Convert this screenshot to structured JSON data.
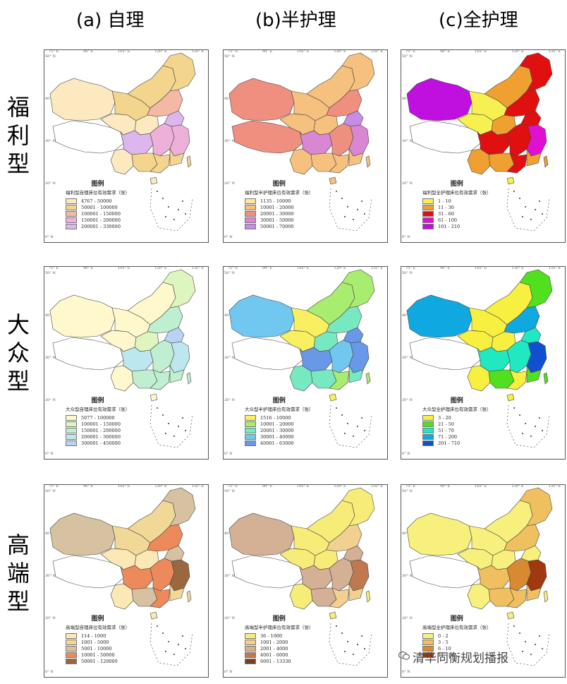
{
  "columns": [
    "(a) 自理",
    "(b)半护理",
    "(c)全护理"
  ],
  "rows": [
    "福利型",
    "大众型",
    "高端型"
  ],
  "legend_heading": "图例",
  "lon_ticks": [
    "75° E",
    "90° E",
    "105° E",
    "120° E",
    "135° E"
  ],
  "lat_ticks": [
    "50° N",
    "40° N",
    "30° N",
    "20° N",
    "0° N"
  ],
  "watermark": "清华同衡规划播报",
  "panels": [
    {
      "id": "welfare-self",
      "legend_title": "福利型自理床位有效需求（张）",
      "classes": [
        "4767 - 50000",
        "50001 - 100000",
        "100001 - 150000",
        "150001 - 200000",
        "200001 - 330000"
      ],
      "colors": [
        "#fce9c0",
        "#f4d58e",
        "#f4b8a4",
        "#eeb0d8",
        "#dcb6ec"
      ],
      "regions": {
        "ne": 1,
        "nm": 1,
        "xj": 0,
        "xz": -1,
        "qh": 0,
        "gs": 1,
        "ns": 0,
        "sc": 4,
        "yn": 0,
        "gx": 1,
        "gd": 1,
        "east": 3,
        "north": 2,
        "cen": 3,
        "hb": 4,
        "sea": 1,
        "tw": 1,
        "hn": 0
      }
    },
    {
      "id": "welfare-semi",
      "legend_title": "福利型半护理床位有效需求（张）",
      "classes": [
        "1135 - 10000",
        "10001 - 20000",
        "20001 - 30000",
        "30001 - 50000",
        "50001 - 70000"
      ],
      "colors": [
        "#fde8a0",
        "#f6c07e",
        "#ef8f80",
        "#d986d3",
        "#c78be8"
      ],
      "regions": {
        "ne": 1,
        "nm": 1,
        "xj": 2,
        "xz": 2,
        "qh": 1,
        "gs": 1,
        "ns": 1,
        "sc": 3,
        "yn": 1,
        "gx": 1,
        "gd": 1,
        "east": 3,
        "north": 2,
        "cen": 2,
        "hb": 4,
        "sea": 1,
        "tw": 1,
        "hn": 1
      }
    },
    {
      "id": "welfare-full",
      "legend_title": "福利型全护理床位有效需求（张）",
      "classes": [
        "1 - 10",
        "11 - 30",
        "31 - 60",
        "61 - 100",
        "101 - 210"
      ],
      "colors": [
        "#f7f050",
        "#f0a030",
        "#e01010",
        "#e010d0",
        "#c010e0"
      ],
      "regions": {
        "ne": 2,
        "nm": 1,
        "xj": 4,
        "xz": -1,
        "qh": 0,
        "gs": 0,
        "ns": 1,
        "sc": 2,
        "yn": 1,
        "gx": 1,
        "gd": 2,
        "east": 3,
        "north": 2,
        "cen": 2,
        "hb": 2,
        "sea": 1,
        "tw": 1,
        "hn": 0
      }
    },
    {
      "id": "mass-self",
      "legend_title": "大众型自理床位有效需求（张）",
      "classes": [
        "5077 - 100000",
        "100001 - 150000",
        "150001 - 200000",
        "200001 - 300000",
        "300001 - 450000"
      ],
      "colors": [
        "#fff8cc",
        "#dff5c0",
        "#bfeed0",
        "#bde7ee",
        "#b9d2f5"
      ],
      "regions": {
        "ne": 1,
        "nm": 0,
        "xj": 0,
        "xz": -1,
        "qh": 0,
        "gs": 0,
        "ns": 1,
        "sc": 3,
        "yn": 0,
        "gx": 2,
        "gd": 2,
        "east": 3,
        "north": 2,
        "cen": 2,
        "hb": 4,
        "sea": 2,
        "tw": 2,
        "hn": 0
      }
    },
    {
      "id": "mass-semi",
      "legend_title": "大众型半护理床位有效需求（张）",
      "classes": [
        "1516 - 10000",
        "10001 - 20000",
        "20001 - 30000",
        "30001 - 40000",
        "40001 - 63000"
      ],
      "colors": [
        "#f8f060",
        "#a8ec70",
        "#78e8c0",
        "#70c8f0",
        "#6a98e8"
      ],
      "regions": {
        "ne": 1,
        "nm": 1,
        "xj": 3,
        "xz": -1,
        "qh": 0,
        "gs": 0,
        "ns": 2,
        "sc": 4,
        "yn": 2,
        "gx": 2,
        "gd": 1,
        "east": 4,
        "north": 2,
        "cen": 3,
        "hb": 4,
        "sea": 2,
        "tw": 1,
        "hn": 0
      }
    },
    {
      "id": "mass-full",
      "legend_title": "大众型全护理床位有效需求（张）",
      "classes": [
        "3 - 20",
        "21 - 50",
        "51 - 70",
        "71 - 200",
        "201 - 710"
      ],
      "colors": [
        "#f8f040",
        "#50e020",
        "#20e8c0",
        "#10a8e0",
        "#1050d0"
      ],
      "regions": {
        "ne": 1,
        "nm": 0,
        "xj": 3,
        "xz": -1,
        "qh": 0,
        "gs": 0,
        "ns": 0,
        "sc": 2,
        "yn": 0,
        "gx": 1,
        "gd": 0,
        "east": 4,
        "north": 3,
        "cen": 2,
        "hb": 2,
        "sea": 1,
        "tw": 1,
        "hn": 0
      }
    },
    {
      "id": "premium-self",
      "legend_title": "高端型自理床位有效需求（张）",
      "classes": [
        "114 - 1000",
        "1001 - 5000",
        "5001 - 10000",
        "10001 - 50000",
        "50001 - 120000"
      ],
      "colors": [
        "#fce8b4",
        "#f2d896",
        "#d6c2a0",
        "#ec8a5c",
        "#9a6840"
      ],
      "regions": {
        "ne": 2,
        "nm": 1,
        "xj": 2,
        "xz": -1,
        "qh": 0,
        "gs": 1,
        "ns": 0,
        "sc": 3,
        "yn": 0,
        "gx": 2,
        "gd": 3,
        "east": 4,
        "north": 3,
        "cen": 3,
        "hb": 2,
        "sea": 1,
        "tw": 1,
        "hn": 0
      }
    },
    {
      "id": "premium-semi",
      "legend_title": "高端型半护理床位有效需求（张）",
      "classes": [
        "36 - 1000",
        "1001 - 2000",
        "2001 - 4000",
        "4001 - 6000",
        "6001 - 13330"
      ],
      "colors": [
        "#f8ec78",
        "#f2d090",
        "#d4b094",
        "#c07850",
        "#744020"
      ],
      "regions": {
        "ne": 0,
        "nm": 0,
        "xj": 2,
        "xz": -1,
        "qh": 0,
        "gs": 0,
        "ns": 0,
        "sc": 2,
        "yn": 0,
        "gx": 2,
        "gd": 1,
        "east": 3,
        "north": 1,
        "cen": 2,
        "hb": 2,
        "sea": 1,
        "tw": 0,
        "hn": 0
      }
    },
    {
      "id": "premium-full",
      "legend_title": "高端型全护理床位有效需求（张）",
      "classes": [
        "0 - 2",
        "3 - 5",
        "6 - 10",
        "11 - 20"
      ],
      "colors": [
        "#f8f07c",
        "#f0c060",
        "#d88a30",
        "#a03810"
      ],
      "regions": {
        "ne": 1,
        "nm": 0,
        "xj": 0,
        "xz": -1,
        "qh": 0,
        "gs": 0,
        "ns": 0,
        "sc": 1,
        "yn": 0,
        "gx": 1,
        "gd": 1,
        "east": 3,
        "north": 1,
        "cen": 2,
        "hb": 0,
        "sea": 1,
        "tw": 0,
        "hn": 0
      }
    }
  ]
}
